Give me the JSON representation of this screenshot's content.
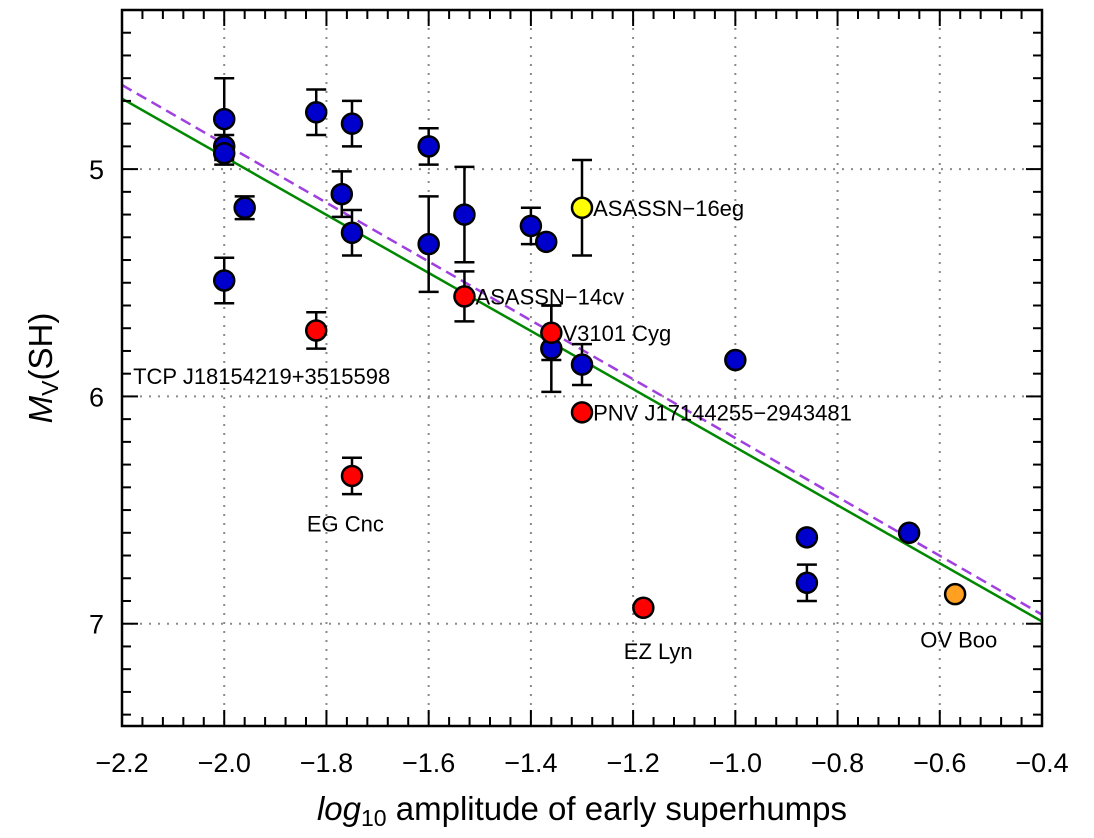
{
  "chart_data": {
    "type": "scatter",
    "xlabel": {
      "italic": "log",
      "sub": "10",
      "rest": " amplitude of early superhumps"
    },
    "ylabel": {
      "italic": "M",
      "sub": "V",
      "rest": "(SH)"
    },
    "xlim": [
      -2.2,
      -0.4
    ],
    "ylim": [
      7.45,
      4.3
    ],
    "y_inverted": true,
    "grid": true,
    "x_ticks": [
      -2.2,
      -2.0,
      -1.8,
      -1.6,
      -1.4,
      -1.2,
      -1.0,
      -0.8,
      -0.6,
      -0.4
    ],
    "x_tick_labels": [
      "−2.2",
      "−2.0",
      "−1.8",
      "−1.6",
      "−1.4",
      "−1.2",
      "−1.0",
      "−0.8",
      "−0.6",
      "−0.4"
    ],
    "y_ticks": [
      5,
      6,
      7
    ],
    "y_tick_labels": [
      "5",
      "6",
      "7"
    ],
    "series": [
      {
        "color": "#0000cc",
        "points": [
          {
            "x": -2.0,
            "y": 4.78,
            "err": 0.18
          },
          {
            "x": -2.0,
            "y": 4.9,
            "err": 0.05
          },
          {
            "x": -2.0,
            "y": 4.93,
            "err": 0.05
          },
          {
            "x": -1.96,
            "y": 5.17,
            "err": 0.05
          },
          {
            "x": -2.0,
            "y": 5.49,
            "err": 0.1
          },
          {
            "x": -1.82,
            "y": 4.75,
            "err": 0.1
          },
          {
            "x": -1.75,
            "y": 4.8,
            "err": 0.1
          },
          {
            "x": -1.77,
            "y": 5.11,
            "err": 0.1
          },
          {
            "x": -1.75,
            "y": 5.28,
            "err": 0.1
          },
          {
            "x": -1.6,
            "y": 4.9,
            "err": 0.08
          },
          {
            "x": -1.6,
            "y": 5.33,
            "err": 0.21
          },
          {
            "x": -1.53,
            "y": 5.2,
            "err": 0.21
          },
          {
            "x": -1.4,
            "y": 5.25,
            "err": 0.08
          },
          {
            "x": -1.37,
            "y": 5.32,
            "err": 0
          },
          {
            "x": -1.36,
            "y": 5.79,
            "err": 0.19
          },
          {
            "x": -1.3,
            "y": 5.86,
            "err": 0.09
          },
          {
            "x": -1.0,
            "y": 5.84,
            "err": 0
          },
          {
            "x": -0.86,
            "y": 6.62,
            "err": 0
          },
          {
            "x": -0.86,
            "y": 6.82,
            "err": 0.08
          },
          {
            "x": -0.66,
            "y": 6.6,
            "err": 0
          }
        ]
      },
      {
        "color": "#ff0000",
        "points": [
          {
            "x": -1.82,
            "y": 5.71,
            "err": 0.08
          },
          {
            "x": -1.75,
            "y": 6.35,
            "err": 0.08
          },
          {
            "x": -1.53,
            "y": 5.56,
            "err": 0.11
          },
          {
            "x": -1.36,
            "y": 5.72,
            "err": 0.12
          },
          {
            "x": -1.3,
            "y": 6.07,
            "err": 0
          },
          {
            "x": -1.18,
            "y": 6.93,
            "err": 0
          }
        ]
      },
      {
        "color": "#ffff00",
        "points": [
          {
            "x": -1.3,
            "y": 5.17,
            "err": 0.21
          }
        ]
      },
      {
        "color": "#ffa020",
        "points": [
          {
            "x": -0.57,
            "y": 6.87,
            "err": 0
          }
        ]
      }
    ],
    "lines": [
      {
        "style": "solid",
        "color": "#008800",
        "x": [
          -2.2,
          -0.4
        ],
        "y": [
          4.69,
          6.99
        ]
      },
      {
        "style": "dashed",
        "color": "#a040e0",
        "x": [
          -2.2,
          -0.4
        ],
        "y": [
          4.63,
          6.96
        ]
      }
    ],
    "annotations": [
      {
        "text": "ASASSN−16eg",
        "x": -1.29,
        "y": 5.17
      },
      {
        "text": "ASASSN−14cv",
        "x": -1.52,
        "y": 5.56
      },
      {
        "text": "V3101 Cyg",
        "x": -1.35,
        "y": 5.72
      },
      {
        "text": "TCP J18154219+3515598",
        "x": -2.19,
        "y": 5.91
      },
      {
        "text": "PNV J17144255−2943481",
        "x": -1.29,
        "y": 6.07
      },
      {
        "text": "EG Cnc",
        "x": -1.85,
        "y": 6.56
      },
      {
        "text": "EZ Lyn",
        "x": -1.23,
        "y": 7.12
      },
      {
        "text": "OV Boo",
        "x": -0.65,
        "y": 7.07
      }
    ]
  }
}
